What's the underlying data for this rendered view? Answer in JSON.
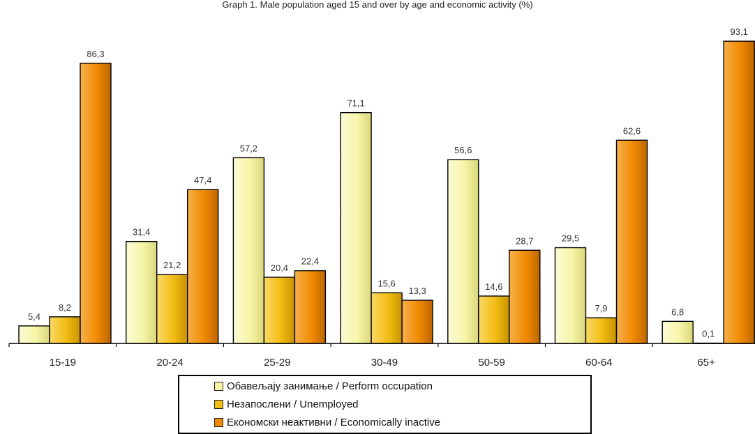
{
  "chart_data": {
    "type": "bar",
    "title": "Graph 1. Male population aged 15 and over by age and economic activity (%)",
    "categories": [
      "15-19",
      "20-24",
      "25-29",
      "30-49",
      "50-59",
      "60-64",
      "65+"
    ],
    "series": [
      {
        "name": "Обавељају занимање / Perform occupation",
        "values": [
          5.4,
          31.4,
          57.2,
          71.1,
          56.6,
          29.5,
          6.8
        ],
        "color": "#f7f5a8"
      },
      {
        "name": "Незапослени / Unemployed",
        "values": [
          8.2,
          21.2,
          20.4,
          15.6,
          14.6,
          7.9,
          0.1
        ],
        "color": "#f2bc12"
      },
      {
        "name": "Економски неактивни / Economically inactive",
        "values": [
          86.3,
          47.4,
          22.4,
          13.3,
          28.7,
          62.6,
          93.1
        ],
        "color": "#f08a00"
      }
    ],
    "data_labels": [
      [
        "5,4",
        "31,4",
        "57,2",
        "71,1",
        "56,6",
        "29,5",
        "6,8"
      ],
      [
        "8,2",
        "21,2",
        "20,4",
        "15,6",
        "14,6",
        "7,9",
        "0,1"
      ],
      [
        "86,3",
        "47,4",
        "22,4",
        "13,3",
        "28,7",
        "62,6",
        "93,1"
      ]
    ],
    "ylim": [
      0,
      100
    ],
    "grid": false,
    "legend_position": "bottom"
  }
}
